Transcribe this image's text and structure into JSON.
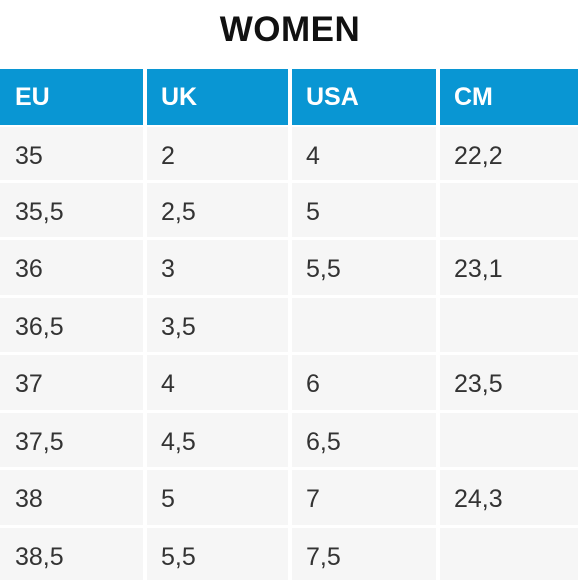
{
  "title": "WOMEN",
  "colors": {
    "header_bg": "#0996d3",
    "header_text": "#ffffff",
    "cell_bg": "#f6f6f6",
    "cell_text": "#333333"
  },
  "table": {
    "headers": [
      "EU",
      "UK",
      "USA",
      "CM"
    ],
    "rows": [
      [
        "35",
        "2",
        "4",
        "22,2"
      ],
      [
        "35,5",
        "2,5",
        "5",
        ""
      ],
      [
        "36",
        "3",
        "5,5",
        "23,1"
      ],
      [
        "36,5",
        "3,5",
        "",
        ""
      ],
      [
        "37",
        "4",
        "6",
        "23,5"
      ],
      [
        "37,5",
        "4,5",
        "6,5",
        ""
      ],
      [
        "38",
        "5",
        "7",
        "24,3"
      ],
      [
        "38,5",
        "5,5",
        "7,5",
        ""
      ]
    ]
  }
}
